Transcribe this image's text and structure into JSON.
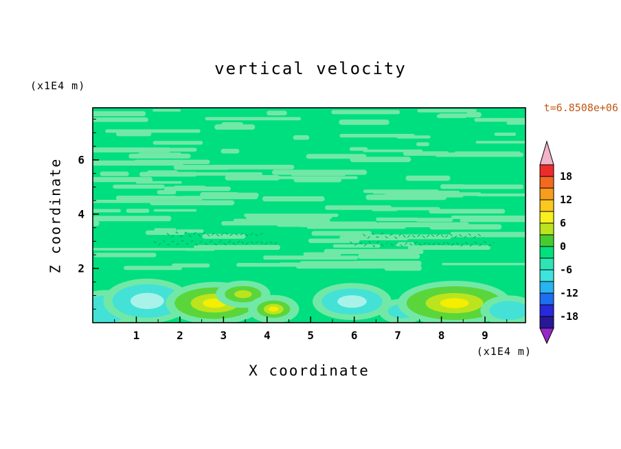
{
  "chart_data": {
    "type": "heatmap",
    "title": "vertical velocity",
    "xlabel": "X coordinate",
    "ylabel": "Z coordinate",
    "x_unit_label": "(x1E4 m)",
    "y_unit_label": "(x1E4 m)",
    "timestamp": "t=6.8508e+06",
    "timestamp_color": "#C25714",
    "xlim": [
      0,
      9.93
    ],
    "ylim": [
      0,
      7.92
    ],
    "x_ticks": [
      1,
      2,
      3,
      4,
      5,
      6,
      7,
      8,
      9
    ],
    "y_ticks": [
      2,
      4,
      6
    ],
    "x_minor_step": 0.5,
    "y_minor_step": 0.5,
    "grid": false,
    "legend_position": "right-colorbar",
    "colorbar": {
      "labels": [
        18,
        12,
        6,
        0,
        -6,
        -12,
        -18
      ],
      "level_step": 3,
      "max_level": 21,
      "segment_colors_top_to_bottom": [
        "#EE2C2C",
        "#F4691E",
        "#F89C1E",
        "#FBC81E",
        "#F8F01E",
        "#BCE41E",
        "#46CC32",
        "#00E07D",
        "#2EE3B4",
        "#3EE3DC",
        "#28B4F0",
        "#1E6EF0",
        "#2828DC",
        "#281896"
      ],
      "arrow_top_color": "#F2B4C8",
      "arrow_bottom_color": "#9628C8"
    },
    "field": {
      "background_level": 0,
      "base_color": "#00DF80",
      "streaks": {
        "color": "#72E8A6",
        "count": 130,
        "seed": 7,
        "min_w": 18,
        "max_w": 150,
        "min_h": 3.5,
        "max_h": 8
      },
      "squiggle_color": "#00A85E",
      "squiggles": [
        {
          "x0": 1.4,
          "x1": 4.3,
          "z": 2.95
        },
        {
          "x0": 1.7,
          "x1": 4.0,
          "z": 3.25
        },
        {
          "x0": 5.9,
          "x1": 9.3,
          "z": 2.9
        },
        {
          "x0": 6.2,
          "x1": 9.0,
          "z": 3.2
        }
      ],
      "blob_palettes": {
        "cyan": [
          "#44E2D6",
          "#A9F2EA"
        ],
        "warm": [
          "#5AD63B",
          "#BCE41E",
          "#F4EE00"
        ]
      },
      "blobs": [
        {
          "x": 0.3,
          "z": 0.5,
          "rx": 0.55,
          "rz": 0.5,
          "type": "cyan",
          "core": false
        },
        {
          "x": 1.25,
          "z": 0.8,
          "rx": 0.8,
          "rz": 0.62,
          "type": "cyan",
          "core": true
        },
        {
          "x": 2.8,
          "z": 0.72,
          "rx": 0.92,
          "rz": 0.58,
          "type": "warm",
          "core": true
        },
        {
          "x": 3.45,
          "z": 1.05,
          "rx": 0.42,
          "rz": 0.3,
          "type": "warm",
          "core": false
        },
        {
          "x": 4.15,
          "z": 0.5,
          "rx": 0.38,
          "rz": 0.32,
          "type": "warm",
          "core": true
        },
        {
          "x": 5.95,
          "z": 0.78,
          "rx": 0.7,
          "rz": 0.48,
          "type": "cyan",
          "core": true
        },
        {
          "x": 7.1,
          "z": 0.42,
          "rx": 0.33,
          "rz": 0.26,
          "type": "cyan",
          "core": false
        },
        {
          "x": 8.3,
          "z": 0.72,
          "rx": 1.1,
          "rz": 0.62,
          "type": "warm",
          "core": true
        },
        {
          "x": 9.55,
          "z": 0.45,
          "rx": 0.45,
          "rz": 0.35,
          "type": "cyan",
          "core": false
        }
      ]
    }
  }
}
